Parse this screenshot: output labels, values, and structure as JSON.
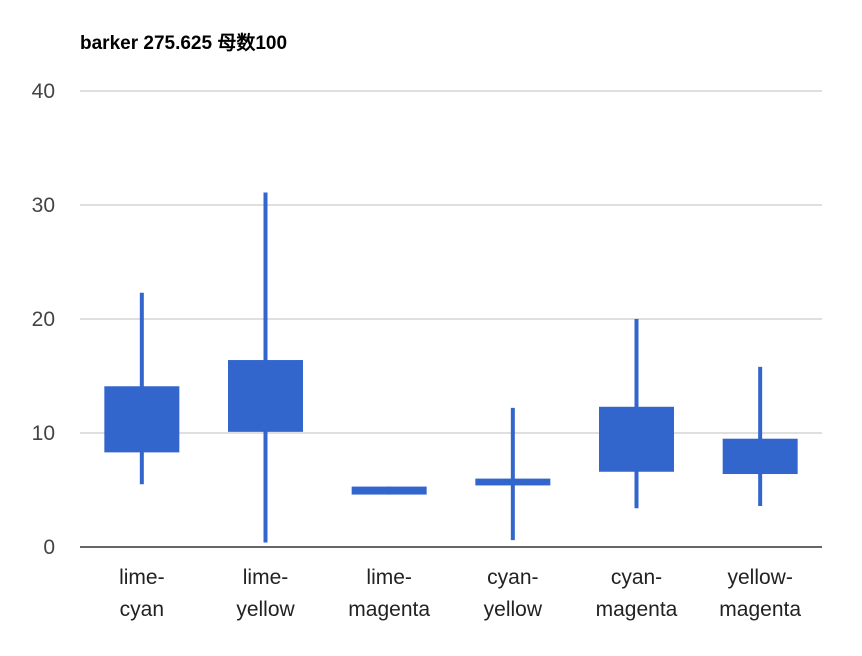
{
  "chart_data": {
    "type": "candlestick",
    "title": "barker 275.625 母数100",
    "xlabel": "",
    "ylabel": "",
    "ylim": [
      0,
      40
    ],
    "yticks": [
      "0",
      "10",
      "20",
      "30",
      "40"
    ],
    "grid": true,
    "legend": "none",
    "colors": {
      "box": "#3366CC",
      "grid": "#CCCCCC",
      "axis": "#333333"
    },
    "categories": [
      [
        "lime-",
        "cyan"
      ],
      [
        "lime-",
        "yellow"
      ],
      [
        "lime-",
        "magenta"
      ],
      [
        "cyan-",
        "yellow"
      ],
      [
        "cyan-",
        "magenta"
      ],
      [
        "yellow-",
        "magenta"
      ]
    ],
    "series": [
      {
        "low": 5.5,
        "open": 8.3,
        "close": 14.1,
        "high": 22.3
      },
      {
        "low": 0.4,
        "open": 10.1,
        "close": 16.4,
        "high": 31.1
      },
      {
        "low": 4.6,
        "open": 4.6,
        "close": 5.3,
        "high": 5.3
      },
      {
        "low": 0.6,
        "open": 5.4,
        "close": 6.0,
        "high": 12.2
      },
      {
        "low": 3.4,
        "open": 6.6,
        "close": 12.3,
        "high": 20.0
      },
      {
        "low": 3.6,
        "open": 6.4,
        "close": 9.5,
        "high": 15.8
      }
    ]
  }
}
